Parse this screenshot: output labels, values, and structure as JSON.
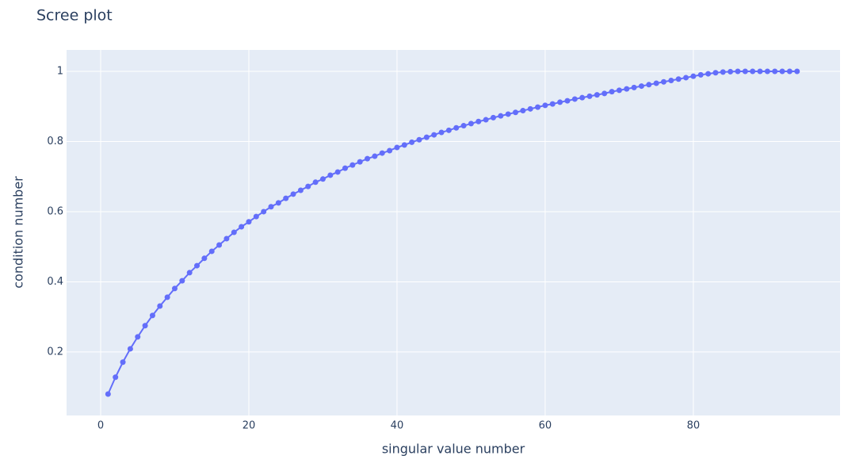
{
  "chart_data": {
    "type": "line",
    "title": "Scree plot",
    "x_label": "singular value number",
    "y_label": "condition number",
    "x": [
      1,
      2,
      3,
      4,
      5,
      6,
      7,
      8,
      9,
      10,
      11,
      12,
      13,
      14,
      15,
      16,
      17,
      18,
      19,
      20,
      21,
      22,
      23,
      24,
      25,
      26,
      27,
      28,
      29,
      30,
      31,
      32,
      33,
      34,
      35,
      36,
      37,
      38,
      39,
      40,
      41,
      42,
      43,
      44,
      45,
      46,
      47,
      48,
      49,
      50,
      51,
      52,
      53,
      54,
      55,
      56,
      57,
      58,
      59,
      60,
      61,
      62,
      63,
      64,
      65,
      66,
      67,
      68,
      69,
      70,
      71,
      72,
      73,
      74,
      75,
      76,
      77,
      78,
      79,
      80,
      81,
      82,
      83,
      84,
      85,
      86,
      87,
      88,
      89,
      90,
      91,
      92,
      93,
      94
    ],
    "series": [
      {
        "name": "condition number",
        "color": "#636efa",
        "values": [
          0.08,
          0.128,
          0.171,
          0.209,
          0.243,
          0.275,
          0.304,
          0.331,
          0.356,
          0.381,
          0.403,
          0.426,
          0.446,
          0.467,
          0.487,
          0.505,
          0.523,
          0.541,
          0.557,
          0.571,
          0.586,
          0.6,
          0.614,
          0.625,
          0.638,
          0.65,
          0.661,
          0.672,
          0.684,
          0.693,
          0.704,
          0.713,
          0.724,
          0.733,
          0.742,
          0.751,
          0.758,
          0.767,
          0.774,
          0.783,
          0.79,
          0.798,
          0.805,
          0.812,
          0.819,
          0.826,
          0.832,
          0.839,
          0.845,
          0.851,
          0.857,
          0.862,
          0.868,
          0.873,
          0.878,
          0.883,
          0.888,
          0.893,
          0.898,
          0.903,
          0.907,
          0.912,
          0.916,
          0.921,
          0.925,
          0.929,
          0.933,
          0.937,
          0.942,
          0.946,
          0.95,
          0.954,
          0.958,
          0.962,
          0.966,
          0.97,
          0.974,
          0.978,
          0.982,
          0.986,
          0.99,
          0.993,
          0.996,
          0.998,
          0.999,
          1.0,
          1.0,
          1.0,
          1.0,
          1.0,
          1.0,
          1.0,
          1.0,
          1.0
        ]
      }
    ],
    "xlim": [
      -4.6,
      99.8
    ],
    "xticks": [
      0,
      20,
      40,
      60,
      80
    ],
    "ylim": [
      0.019,
      1.061
    ],
    "yticks": [
      0.2,
      0.4,
      0.6,
      0.8,
      1
    ],
    "grid": true,
    "markers": true
  }
}
